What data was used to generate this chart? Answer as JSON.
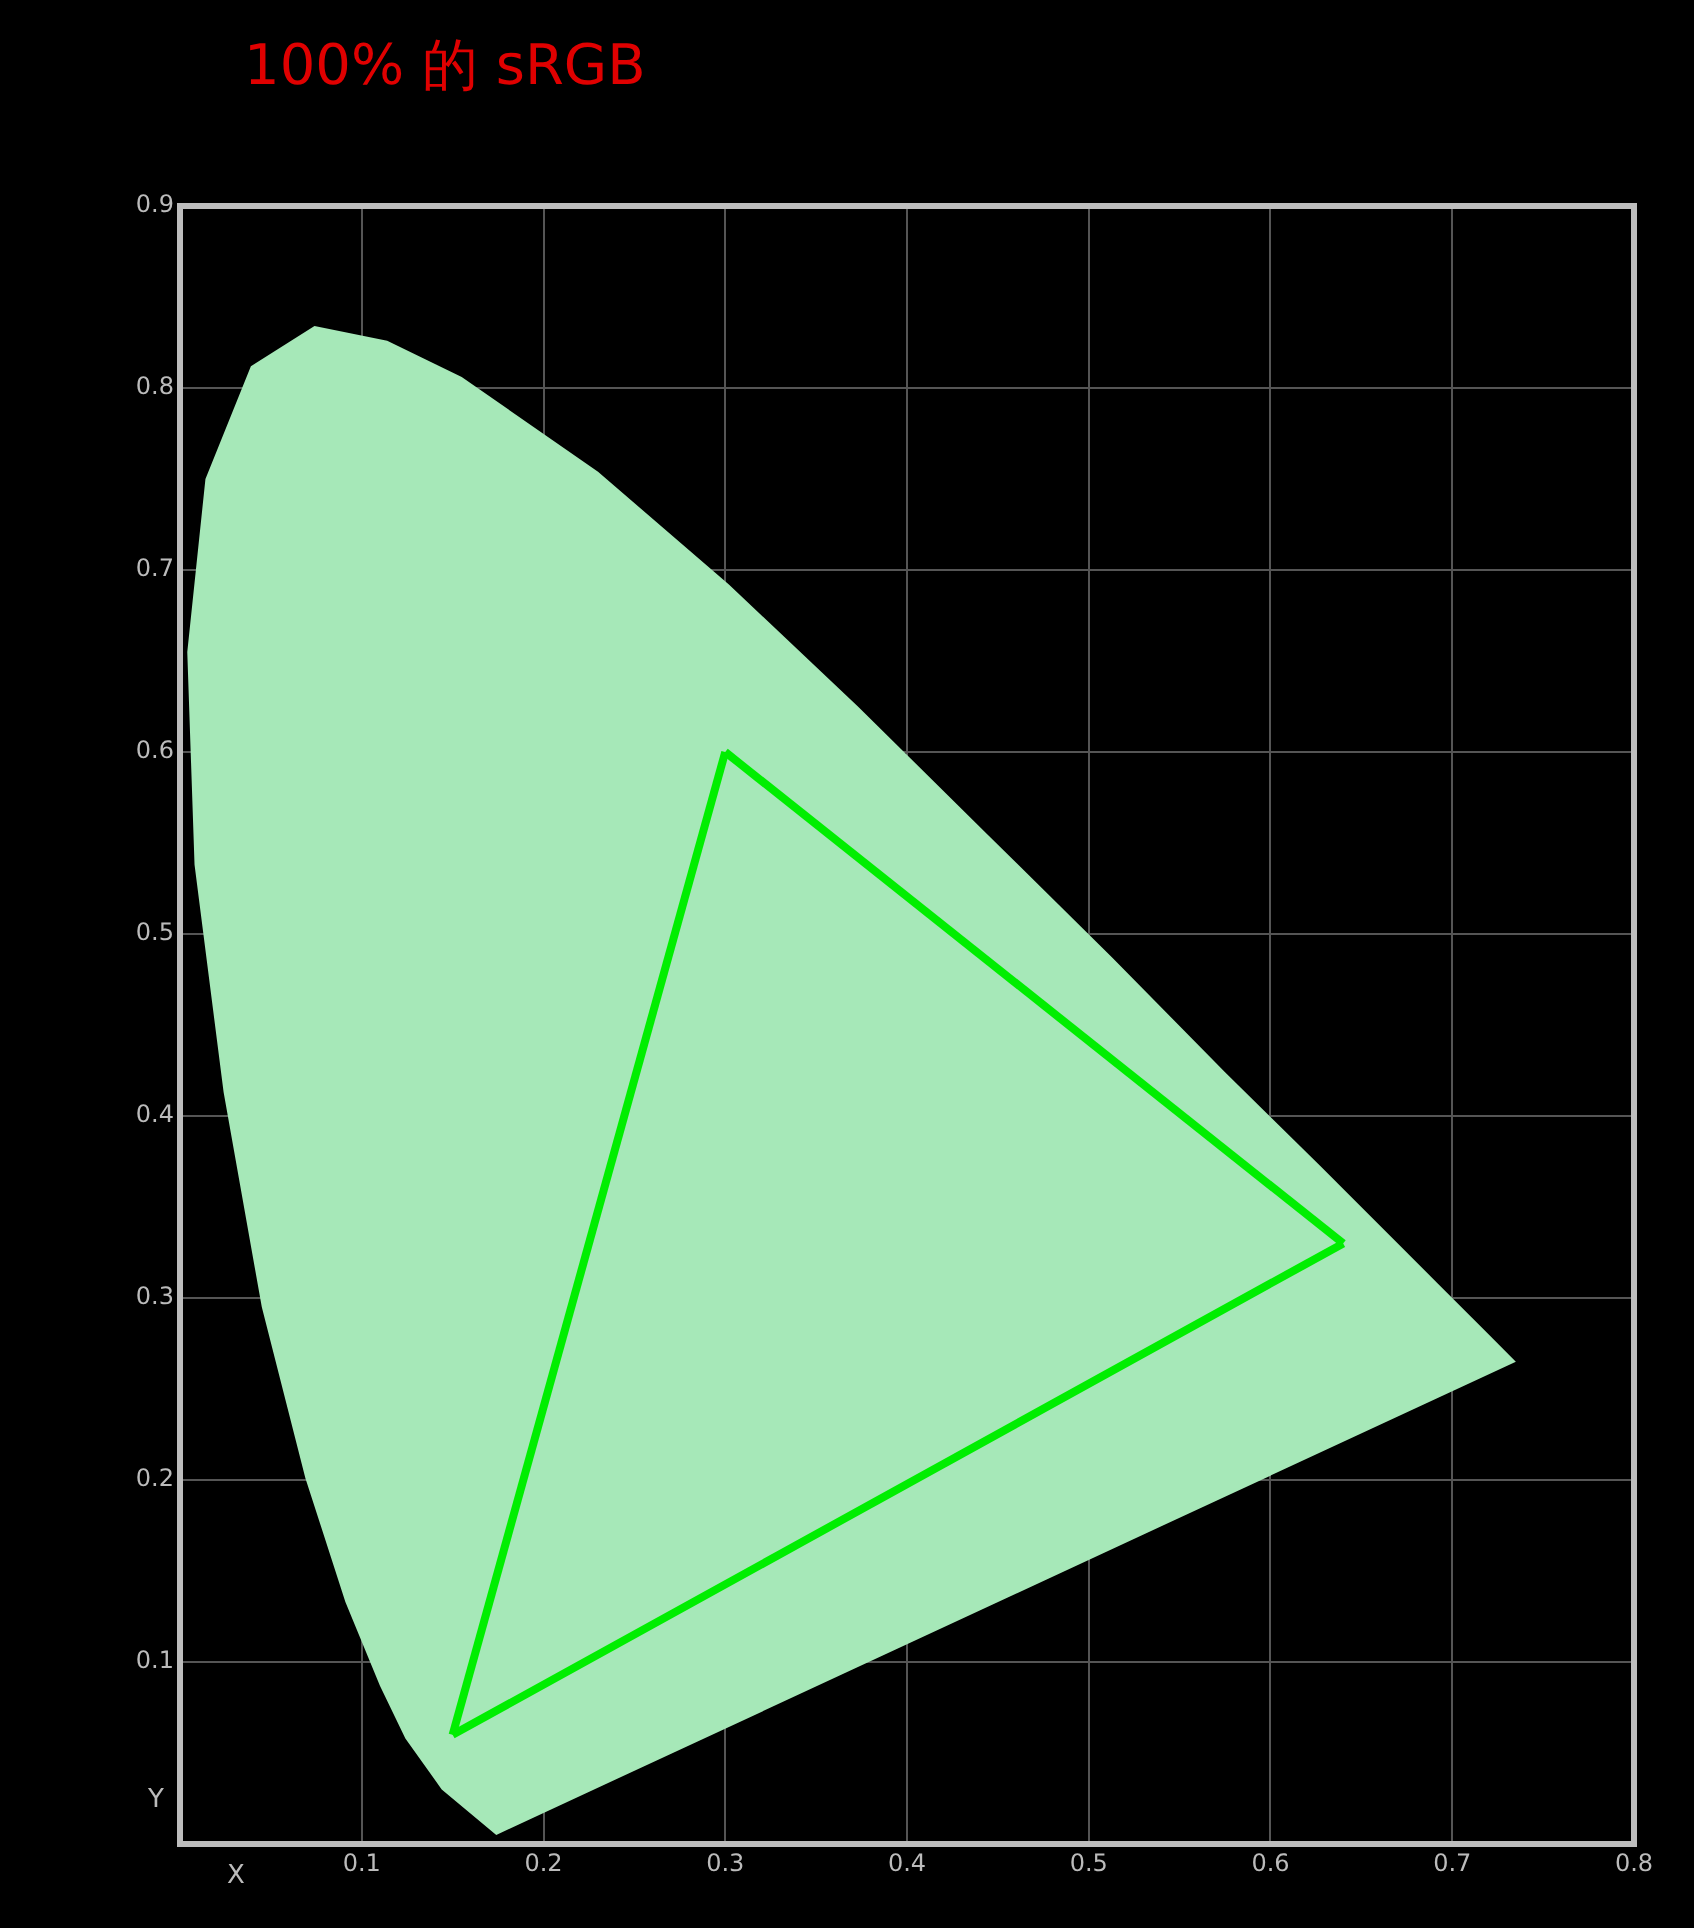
{
  "chart_data": {
    "type": "line",
    "title": "100% 的 sRGB",
    "xlabel": "X",
    "ylabel": "Y",
    "xlim": [
      0,
      0.8
    ],
    "ylim": [
      0,
      0.9
    ],
    "xticks": [
      0.1,
      0.2,
      0.3,
      0.4,
      0.5,
      0.6,
      0.7,
      0.8
    ],
    "yticks": [
      0.1,
      0.2,
      0.3,
      0.4,
      0.5,
      0.6,
      0.7,
      0.8,
      0.9
    ],
    "grid": true,
    "legend": false,
    "marker": "none",
    "series": [
      {
        "type": "area",
        "color": "#a6e8b8",
        "x": [
          0.174,
          0.144,
          0.124,
          0.11,
          0.091,
          0.069,
          0.045,
          0.024,
          0.008,
          0.004,
          0.014,
          0.039,
          0.074,
          0.114,
          0.155,
          0.23,
          0.302,
          0.373,
          0.444,
          0.513,
          0.575,
          0.627,
          0.692,
          0.719,
          0.735,
          0.174
        ],
        "values": [
          0.005,
          0.03,
          0.058,
          0.087,
          0.133,
          0.201,
          0.295,
          0.413,
          0.538,
          0.655,
          0.75,
          0.812,
          0.834,
          0.826,
          0.806,
          0.754,
          0.692,
          0.625,
          0.555,
          0.487,
          0.424,
          0.373,
          0.308,
          0.281,
          0.265,
          0.005
        ]
      },
      {
        "type": "line",
        "color": "#00ee00",
        "x": [
          0.3,
          0.64
        ],
        "values": [
          0.6,
          0.33
        ]
      },
      {
        "type": "line",
        "color": "#00ee00",
        "x": [
          0.15,
          0.64
        ],
        "values": [
          0.06,
          0.33
        ]
      },
      {
        "type": "line",
        "color": "#00ee00",
        "x": [
          0.15,
          0.3
        ],
        "values": [
          0.06,
          0.6
        ]
      }
    ]
  }
}
